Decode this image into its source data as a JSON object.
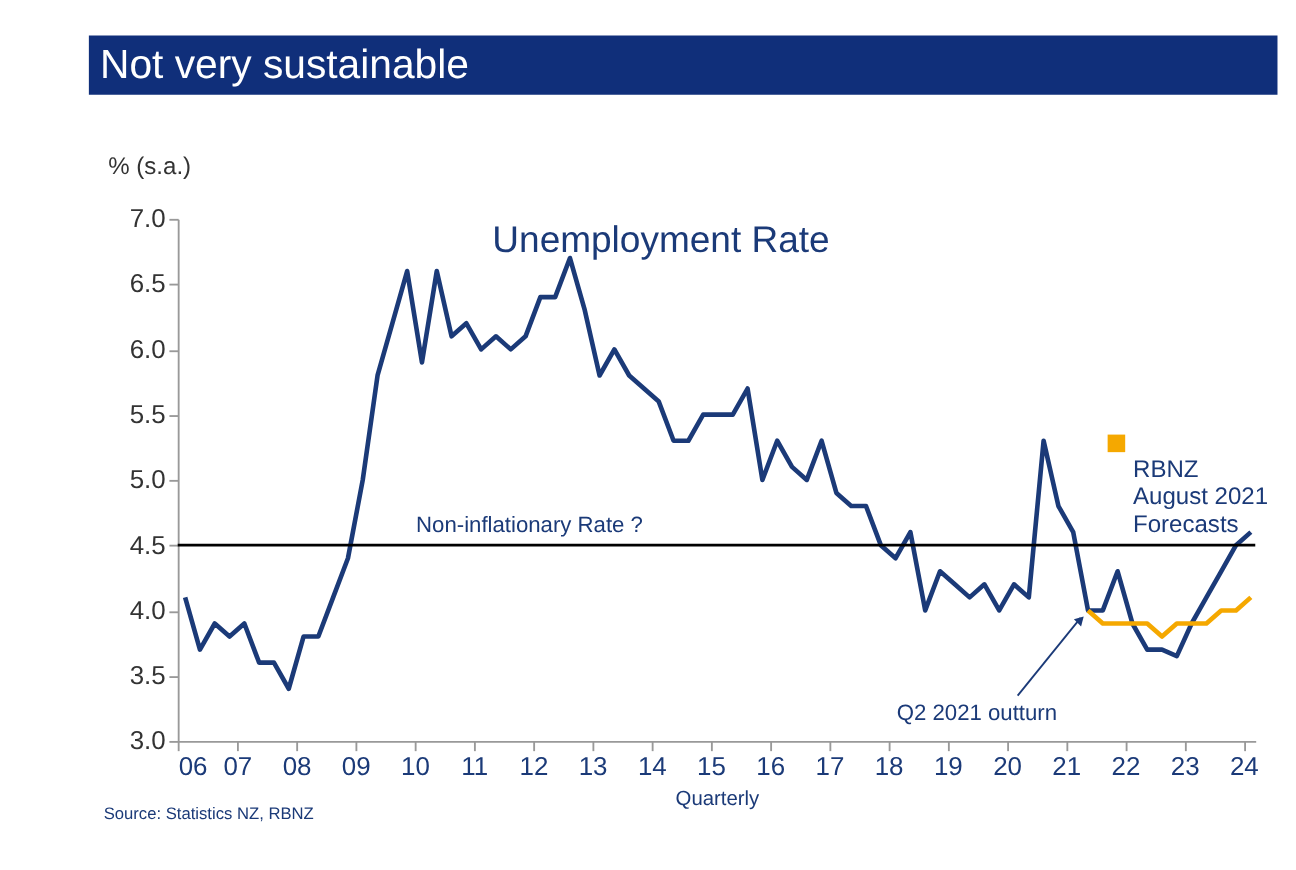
{
  "chart_data": {
    "type": "line",
    "title": "Not very sustainable",
    "subtitle": "Unemployment Rate",
    "ylabel": "% (s.a.)",
    "xlabel": "Quarterly",
    "annotations": [
      "Source: Statistics NZ, RBNZ",
      {
        "text": "Q2 2021 outturn",
        "x": 2021.375,
        "y": 4.0
      }
    ],
    "xlim": [
      2006,
      2024.2
    ],
    "xticks": [
      {
        "value": 2006,
        "label": "06"
      },
      {
        "value": 2007,
        "label": "07"
      },
      {
        "value": 2008,
        "label": "08"
      },
      {
        "value": 2009,
        "label": "09"
      },
      {
        "value": 2010,
        "label": "10"
      },
      {
        "value": 2011,
        "label": "11"
      },
      {
        "value": 2012,
        "label": "12"
      },
      {
        "value": 2013,
        "label": "13"
      },
      {
        "value": 2014,
        "label": "14"
      },
      {
        "value": 2015,
        "label": "15"
      },
      {
        "value": 2016,
        "label": "16"
      },
      {
        "value": 2017,
        "label": "17"
      },
      {
        "value": 2018,
        "label": "18"
      },
      {
        "value": 2019,
        "label": "19"
      },
      {
        "value": 2020,
        "label": "20"
      },
      {
        "value": 2021,
        "label": "21"
      },
      {
        "value": 2022,
        "label": "22"
      },
      {
        "value": 2023,
        "label": "23"
      },
      {
        "value": 2024,
        "label": "24"
      }
    ],
    "ylim": [
      3.0,
      7.0
    ],
    "yticks": [
      {
        "value": 3,
        "label": "3.0"
      },
      {
        "value": 3.5,
        "label": "3.5"
      },
      {
        "value": 4,
        "label": "4.0"
      },
      {
        "value": 4.5,
        "label": "4.5"
      },
      {
        "value": 5,
        "label": "5.0"
      },
      {
        "value": 5.5,
        "label": "5.5"
      },
      {
        "value": 6,
        "label": "6.0"
      },
      {
        "value": 6.5,
        "label": "6.5"
      },
      {
        "value": 7,
        "label": "7.0"
      }
    ],
    "ref_lines": [
      {
        "axis": "y",
        "value": 4.5,
        "label": "Non-inflationary Rate ?",
        "color": "#000000"
      }
    ],
    "legend": "right",
    "line_style": "solid",
    "series": [
      {
        "color": "#1b3a78",
        "x": [
          2006.125,
          2006.375,
          2006.625,
          2006.875,
          2007.125,
          2007.375,
          2007.625,
          2007.875,
          2008.125,
          2008.375,
          2008.625,
          2008.875,
          2009.125,
          2009.375,
          2009.625,
          2009.875,
          2010.125,
          2010.375,
          2010.625,
          2010.875,
          2011.125,
          2011.375,
          2011.625,
          2011.875,
          2012.125,
          2012.375,
          2012.625,
          2012.875,
          2013.125,
          2013.375,
          2013.625,
          2013.875,
          2014.125,
          2014.375,
          2014.625,
          2014.875,
          2015.125,
          2015.375,
          2015.625,
          2015.875,
          2016.125,
          2016.375,
          2016.625,
          2016.875,
          2017.125,
          2017.375,
          2017.625,
          2017.875,
          2018.125,
          2018.375,
          2018.625,
          2018.875,
          2019.125,
          2019.375,
          2019.625,
          2019.875,
          2020.125,
          2020.375,
          2020.625,
          2020.875,
          2021.125,
          2021.375,
          2021.625,
          2021.875,
          2022.125,
          2022.375,
          2022.625,
          2022.875,
          2023.125,
          2023.375,
          2023.625,
          2023.875,
          2024.125
        ],
        "values": [
          4.1,
          3.7,
          3.9,
          3.8,
          3.9,
          3.6,
          3.6,
          3.4,
          3.8,
          3.8,
          4.1,
          4.4,
          5.0,
          5.8,
          6.2,
          6.6,
          5.9,
          6.6,
          6.1,
          6.2,
          6.0,
          6.1,
          6.0,
          6.1,
          6.4,
          6.4,
          6.7,
          6.3,
          5.8,
          6.0,
          5.8,
          5.7,
          5.6,
          5.3,
          5.3,
          5.5,
          5.5,
          5.5,
          5.7,
          5.0,
          5.3,
          5.1,
          5.0,
          5.3,
          4.9,
          4.8,
          4.8,
          4.5,
          4.4,
          4.6,
          4.0,
          4.3,
          4.2,
          4.1,
          4.2,
          4.0,
          4.2,
          4.1,
          5.3,
          4.8,
          4.6,
          4.0,
          4.0,
          4.3,
          3.9,
          3.7,
          3.7,
          3.65,
          3.9,
          4.1,
          4.3,
          4.5,
          4.6
        ]
      },
      {
        "name": "RBNZ August 2021 Forecasts",
        "color": "#f5a800",
        "x": [
          2021.375,
          2021.625,
          2021.875,
          2022.125,
          2022.375,
          2022.625,
          2022.875,
          2023.125,
          2023.375,
          2023.625,
          2023.875,
          2024.125
        ],
        "values": [
          4.0,
          3.9,
          3.9,
          3.9,
          3.9,
          3.8,
          3.9,
          3.9,
          3.9,
          4.0,
          4.0,
          4.1
        ]
      }
    ]
  }
}
